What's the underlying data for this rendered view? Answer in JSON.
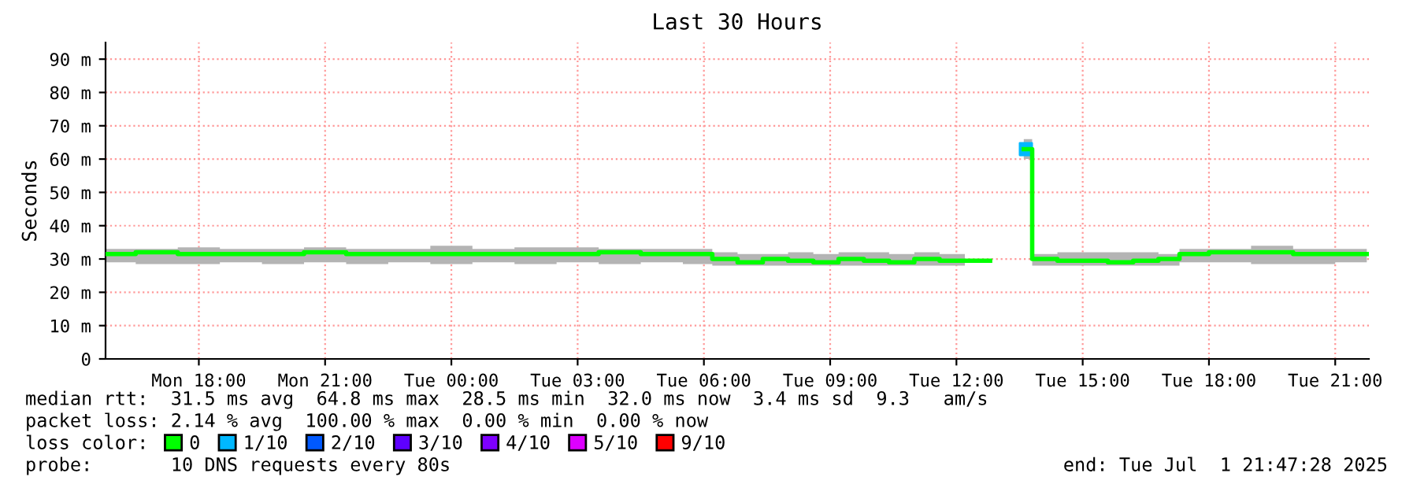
{
  "chart_data": {
    "type": "step",
    "title": "Last 30 Hours",
    "ylabel": "Seconds",
    "xlim": [
      "2025-06-30T15:47",
      "2025-07-01T21:48"
    ],
    "xticks": [
      {
        "value": "2025-06-30T18:00",
        "label": "Mon 18:00"
      },
      {
        "value": "2025-06-30T21:00",
        "label": "Mon 21:00"
      },
      {
        "value": "2025-07-01T00:00",
        "label": "Tue 00:00"
      },
      {
        "value": "2025-07-01T03:00",
        "label": "Tue 03:00"
      },
      {
        "value": "2025-07-01T06:00",
        "label": "Tue 06:00"
      },
      {
        "value": "2025-07-01T09:00",
        "label": "Tue 09:00"
      },
      {
        "value": "2025-07-01T12:00",
        "label": "Tue 12:00"
      },
      {
        "value": "2025-07-01T15:00",
        "label": "Tue 15:00"
      },
      {
        "value": "2025-07-01T18:00",
        "label": "Tue 18:00"
      },
      {
        "value": "2025-07-01T21:00",
        "label": "Tue 21:00"
      }
    ],
    "ylim": [
      0,
      95
    ],
    "yticks": [
      0,
      {
        "value": 10,
        "label": "10 m"
      },
      {
        "value": 20,
        "label": "20 m"
      },
      {
        "value": 30,
        "label": "30 m"
      },
      {
        "value": 40,
        "label": "40 m"
      },
      {
        "value": 50,
        "label": "50 m"
      },
      {
        "value": 60,
        "label": "60 m"
      },
      {
        "value": 70,
        "label": "70 m"
      },
      {
        "value": 80,
        "label": "80 m"
      },
      {
        "value": 90,
        "label": "90 m"
      }
    ],
    "grid": true,
    "legend": "bottom",
    "series": [
      {
        "name": "0",
        "color": "#00ff00",
        "x": [
          "2025-06-30T15:47",
          "2025-06-30T16:30",
          "2025-06-30T17:30",
          "2025-06-30T18:30",
          "2025-06-30T19:30",
          "2025-06-30T20:30",
          "2025-06-30T21:30",
          "2025-06-30T22:30",
          "2025-06-30T23:30",
          "2025-07-01T00:30",
          "2025-07-01T01:30",
          "2025-07-01T02:30",
          "2025-07-01T03:30",
          "2025-07-01T04:30",
          "2025-07-01T05:30",
          "2025-07-01T06:12",
          "2025-07-01T06:48",
          "2025-07-01T07:24",
          "2025-07-01T08:00",
          "2025-07-01T08:36",
          "2025-07-01T09:12",
          "2025-07-01T09:48",
          "2025-07-01T10:24",
          "2025-07-01T11:00",
          "2025-07-01T11:36",
          "2025-07-01T12:12",
          "2025-07-01T12:48",
          "2025-07-01T13:36",
          "2025-07-01T13:48",
          "2025-07-01T14:24",
          "2025-07-01T15:00",
          "2025-07-01T15:36",
          "2025-07-01T16:12",
          "2025-07-01T16:48",
          "2025-07-01T17:18",
          "2025-07-01T18:00",
          "2025-07-01T19:00",
          "2025-07-01T20:00",
          "2025-07-01T21:00",
          "2025-07-01T21:45"
        ],
        "values": [
          31.5,
          32,
          31.5,
          31.5,
          31.5,
          32,
          31.5,
          31.5,
          31.5,
          31.5,
          31.5,
          31.5,
          32,
          31.5,
          31.5,
          30,
          29,
          30,
          29.5,
          29,
          30,
          29.5,
          29,
          30,
          29.5,
          29.5,
          null,
          63,
          30,
          29.5,
          29.5,
          29,
          29.5,
          30,
          31.5,
          32,
          32,
          31.5,
          31.5,
          31.5
        ],
        "lower": [
          29,
          28.5,
          28.5,
          29,
          28.5,
          29,
          28.5,
          29,
          28.5,
          29,
          28.5,
          29,
          28.5,
          29,
          28.5,
          28,
          28,
          28,
          28,
          28,
          28,
          28,
          28,
          28,
          28,
          28,
          null,
          60,
          28,
          28,
          28,
          28,
          28,
          28,
          29,
          29,
          28.5,
          28.5,
          29,
          29
        ],
        "upper": [
          33,
          33,
          33.5,
          33,
          33,
          33.5,
          33,
          33,
          34,
          33,
          33.5,
          33.5,
          33,
          33,
          33,
          32,
          31.5,
          31.5,
          32,
          31.5,
          32,
          32,
          31.5,
          32,
          31.5,
          31.5,
          null,
          66,
          31.5,
          32,
          32,
          32,
          32,
          31.5,
          33,
          33,
          34,
          33,
          33,
          33
        ]
      },
      {
        "name": "1/10",
        "type": "scatter",
        "marker": "square",
        "color": "#00b8ff",
        "x": [
          "2025-07-01T13:39"
        ],
        "values": [
          63
        ]
      },
      {
        "name": "2/10",
        "type": "scatter",
        "color": "#0059ff"
      },
      {
        "name": "3/10",
        "type": "scatter",
        "color": "#5e00ff"
      },
      {
        "name": "4/10",
        "type": "scatter",
        "color": "#7e00ff"
      },
      {
        "name": "5/10",
        "type": "scatter",
        "color": "#dd00ff"
      },
      {
        "name": "9/10",
        "type": "scatter",
        "color": "#ff0000"
      }
    ],
    "annotations": [
      "median rtt:  31.5 ms avg  64.8 ms max  28.5 ms min  32.0 ms now  3.4 ms sd  9.3   am/s",
      "packet loss: 2.14 % avg  100.00 % max  0.00 % min  0.00 % now",
      "loss color:",
      "probe:       10 DNS requests every 80s",
      "end: Tue Jul  1 21:47:28 2025"
    ]
  }
}
